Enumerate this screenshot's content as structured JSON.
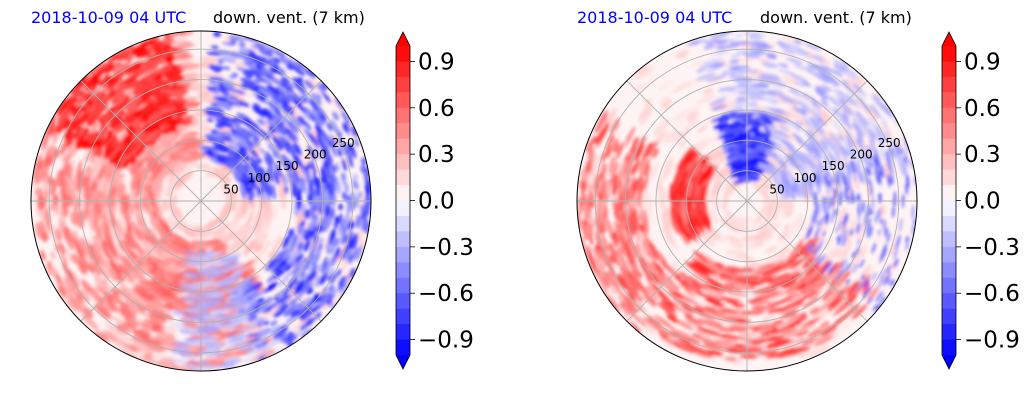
{
  "chart_data": [
    {
      "type": "heatmap",
      "projection": "polar",
      "title_left": "2018-10-09 04 UTC",
      "title_right": "down. vent. (7 km)",
      "title_left_color": "#0000ff",
      "radial_tick_labels": [
        "50",
        "100",
        "150",
        "200",
        "250"
      ],
      "radial_ticks": [
        50,
        100,
        150,
        200,
        250
      ],
      "rlim": [
        0,
        280
      ],
      "grid": true,
      "colorbar": {
        "ticks": [
          0.9,
          0.6,
          0.3,
          0.0,
          -0.3,
          -0.6,
          -0.9
        ],
        "tick_labels": [
          "0.9",
          "0.6",
          "0.3",
          "0.0",
          "−0.3",
          "−0.6",
          "−0.9"
        ],
        "range": [
          -1.0,
          1.0
        ],
        "extend": "both",
        "cmap": "bwr"
      }
    },
    {
      "type": "heatmap",
      "projection": "polar",
      "title_left": "2018-10-09 04 UTC",
      "title_right": "down. vent. (7 km)",
      "title_left_color": "#0000ff",
      "radial_tick_labels": [
        "50",
        "100",
        "150",
        "200",
        "250"
      ],
      "radial_ticks": [
        50,
        100,
        150,
        200,
        250
      ],
      "rlim": [
        0,
        280
      ],
      "grid": true,
      "colorbar": {
        "ticks": [
          0.9,
          0.6,
          0.3,
          0.0,
          -0.3,
          -0.6,
          -0.9
        ],
        "tick_labels": [
          "0.9",
          "0.6",
          "0.3",
          "0.0",
          "−0.3",
          "−0.6",
          "−0.9"
        ],
        "range": [
          -1.0,
          1.0
        ],
        "extend": "both",
        "cmap": "bwr"
      }
    }
  ]
}
